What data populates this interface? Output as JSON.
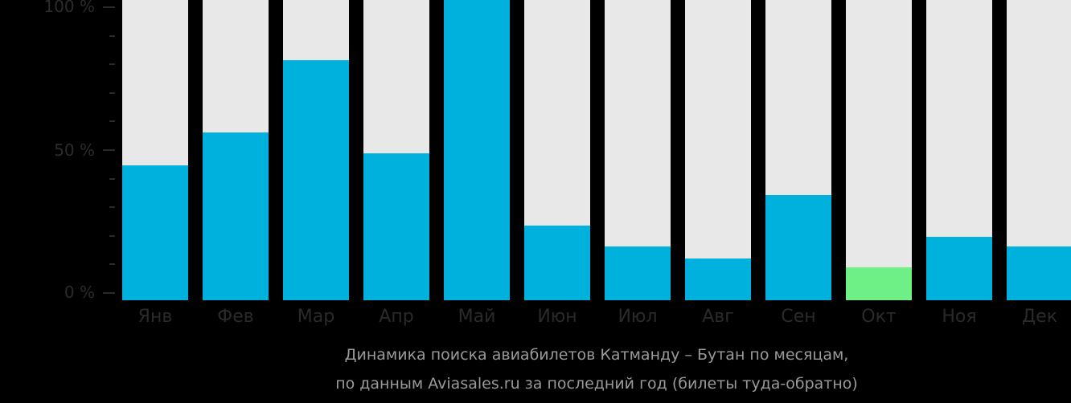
{
  "chart_data": {
    "type": "bar",
    "title": "Динамика поиска авиабилетов Катманду – Бутан по месяцам,",
    "subtitle": "по данным Aviasales.ru за последний год (билеты туда-обратно)",
    "xlabel": "",
    "ylabel": "",
    "ylim": [
      0,
      100
    ],
    "yticks": [
      "0 %",
      "50 %",
      "100 %"
    ],
    "categories": [
      "Янв",
      "Фев",
      "Мар",
      "Апр",
      "Май",
      "Июн",
      "Июл",
      "Авг",
      "Сен",
      "Окт",
      "Ноя",
      "Дек"
    ],
    "values": [
      45,
      56,
      80,
      49,
      100,
      25,
      18,
      14,
      35,
      11,
      21,
      18
    ],
    "highlight_index": 9,
    "colors": {
      "bar": "#00b0dd",
      "highlight": "#6ff087",
      "track": "#e8e8e8",
      "background": "#000000"
    },
    "grid": false
  },
  "axis": {
    "y100": "100 %",
    "y50": "50 %",
    "y0": "0 %"
  },
  "caption": {
    "line1": "Динамика поиска авиабилетов Катманду – Бутан по месяцам,",
    "line2": "по данным Aviasales.ru за последний год (билеты туда-обратно)"
  }
}
